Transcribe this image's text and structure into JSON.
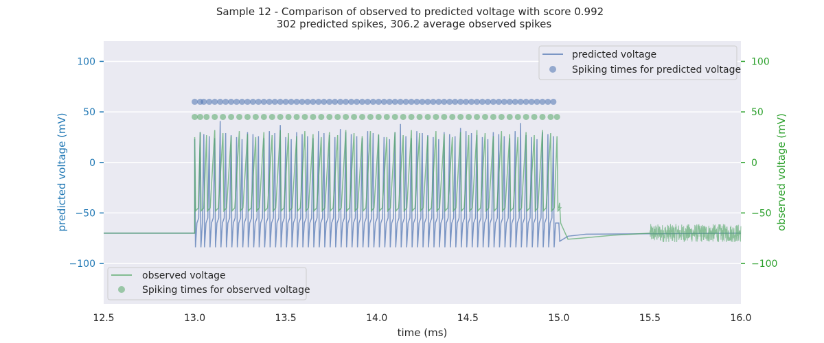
{
  "chart_data": {
    "type": "line",
    "title_line1": "Sample 12 - Comparison of observed to predicted voltage with score 0.992",
    "title_line2": "302 predicted spikes, 306.2 average observed spikes",
    "xlabel": "time (ms)",
    "ylabel_left": "predicted voltage (mV)",
    "ylabel_right": "observed voltage (mV)",
    "xlim": [
      12.5,
      16.0
    ],
    "ylim_left": [
      -140,
      120
    ],
    "ylim_right": [
      -140,
      120
    ],
    "x_ticks": [
      "12.5",
      "13.0",
      "13.5",
      "14.0",
      "14.5",
      "15.0",
      "15.5",
      "16.0"
    ],
    "y_ticks_left": [
      "−100",
      "−50",
      "0",
      "50",
      "100"
    ],
    "y_ticks_right": [
      "−100",
      "−50",
      "0",
      "50",
      "100"
    ],
    "grid": true,
    "colors": {
      "predicted": "#4c72b0",
      "observed": "#55a868",
      "left_axis": "#1f77b4",
      "right_axis": "#2ca02c",
      "plot_bg": "#eaeaf2"
    },
    "series": [
      {
        "name": "predicted voltage",
        "resting_mV": -70,
        "stim_start": 13.0,
        "stim_end": 15.0,
        "spike_peak_approx_mV": 30,
        "trough_mV": -84,
        "after_stim_mV": -78,
        "spike_times_y_mV": 60
      },
      {
        "name": "observed voltage",
        "resting_mV": -70,
        "stim_start": 13.0,
        "stim_end": 15.0,
        "spike_peak_approx_mV": 30,
        "trough_mV": -48,
        "noise_start": 15.5,
        "noise_end": 16.0,
        "noise_amplitude_mV": 10,
        "spike_times_y_mV": 45
      }
    ],
    "legend_upper": {
      "placement": "upper-right",
      "entries": [
        "predicted voltage",
        "Spiking times for predicted voltage"
      ]
    },
    "legend_lower": {
      "placement": "lower-left",
      "entries": [
        "observed voltage",
        "Spiking times for observed voltage"
      ]
    },
    "predicted_spike_times": [
      13.0,
      13.03,
      13.05,
      13.08,
      13.11,
      13.14,
      13.17,
      13.2,
      13.23,
      13.26,
      13.29,
      13.32,
      13.35,
      13.38,
      13.41,
      13.44,
      13.47,
      13.5,
      13.53,
      13.56,
      13.59,
      13.62,
      13.65,
      13.68,
      13.71,
      13.74,
      13.77,
      13.8,
      13.83,
      13.86,
      13.89,
      13.92,
      13.95,
      13.98,
      14.01,
      14.04,
      14.07,
      14.1,
      14.13,
      14.16,
      14.19,
      14.22,
      14.25,
      14.28,
      14.31,
      14.34,
      14.37,
      14.4,
      14.43,
      14.46,
      14.49,
      14.52,
      14.55,
      14.58,
      14.61,
      14.64,
      14.67,
      14.7,
      14.73,
      14.76,
      14.79,
      14.82,
      14.85,
      14.88,
      14.91,
      14.94,
      14.97
    ],
    "observed_spike_times": [
      13.0,
      13.03,
      13.065,
      13.11,
      13.155,
      13.2,
      13.245,
      13.29,
      13.335,
      13.38,
      13.425,
      13.47,
      13.515,
      13.56,
      13.605,
      13.65,
      13.695,
      13.74,
      13.785,
      13.83,
      13.875,
      13.92,
      13.965,
      14.01,
      14.055,
      14.1,
      14.145,
      14.19,
      14.235,
      14.28,
      14.325,
      14.37,
      14.415,
      14.46,
      14.505,
      14.55,
      14.595,
      14.64,
      14.685,
      14.73,
      14.775,
      14.82,
      14.865,
      14.91,
      14.955,
      14.99
    ]
  }
}
